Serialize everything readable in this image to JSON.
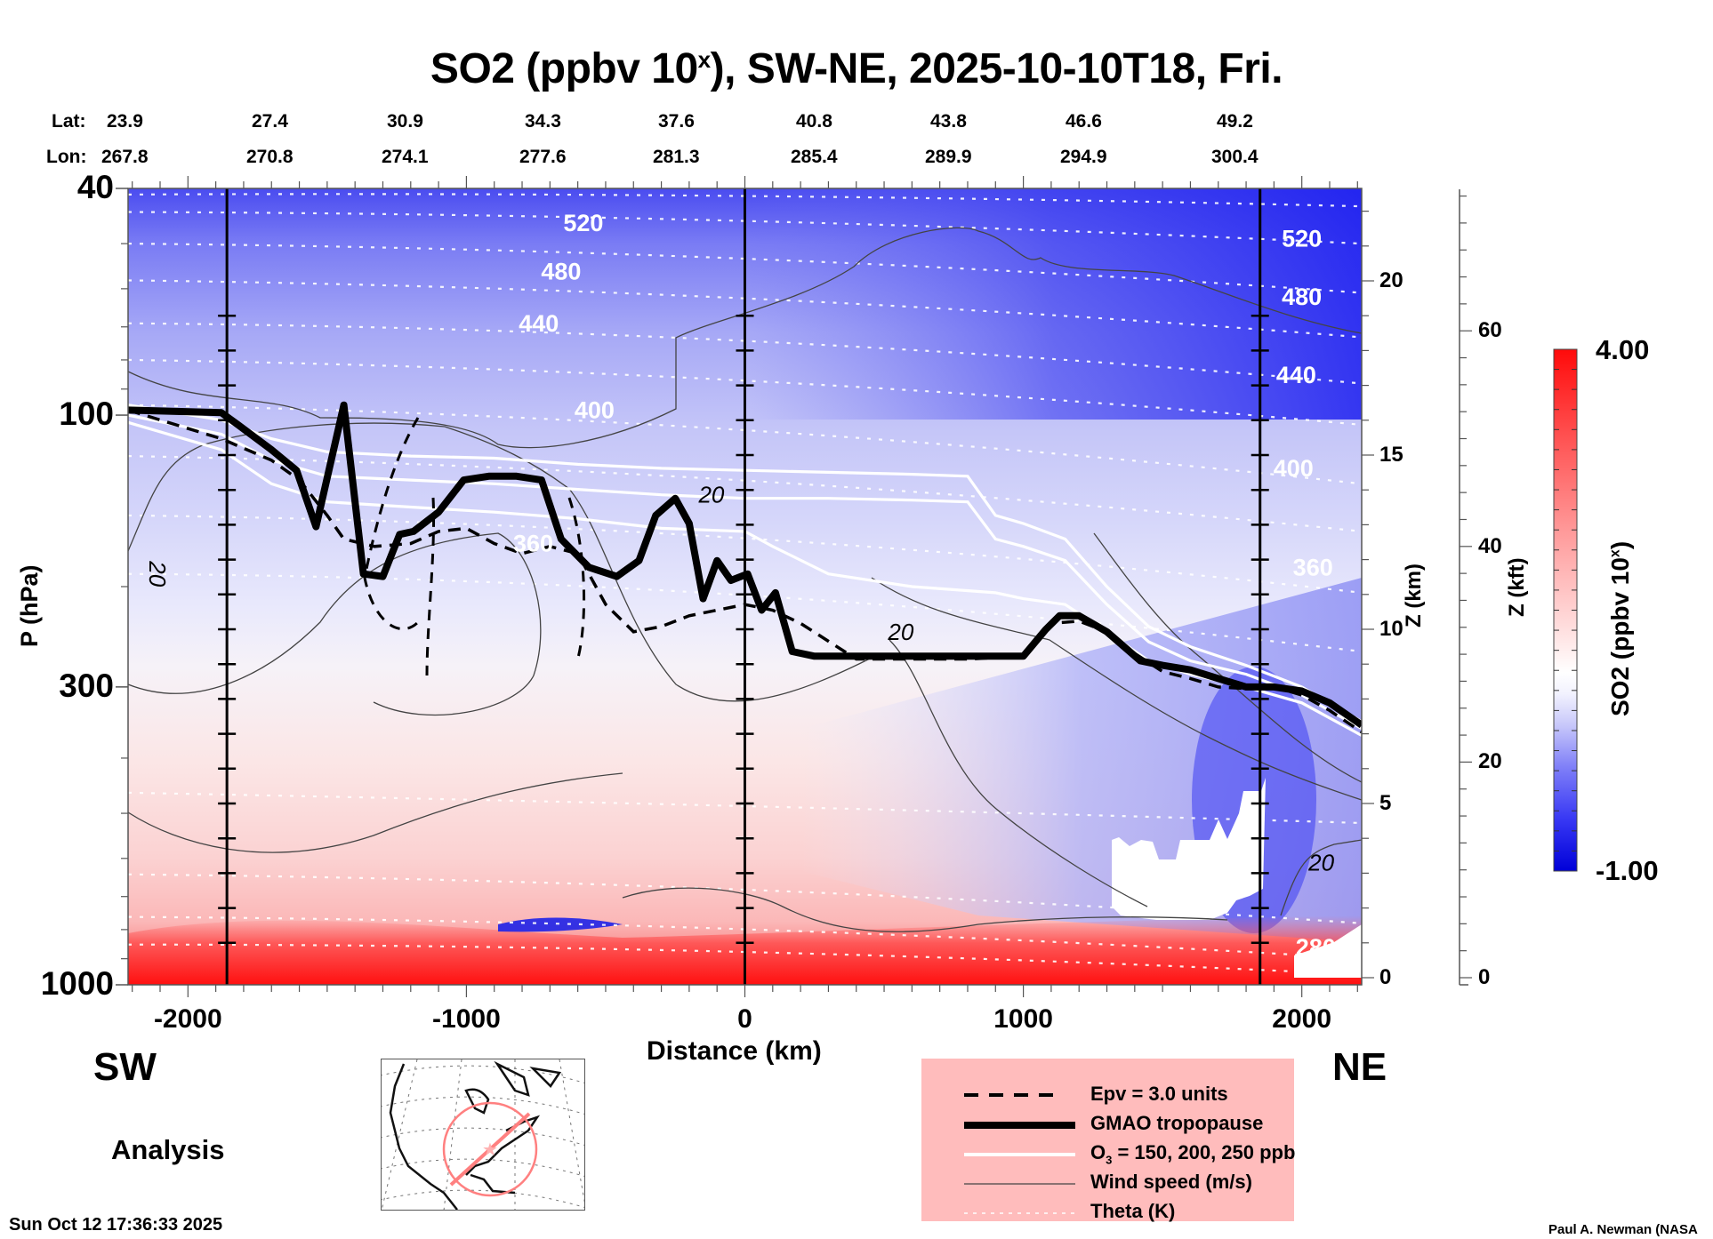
{
  "header": {
    "title_prefix": "SO2 (ppbv 10",
    "title_sup": "x",
    "title_suffix": "), SW-NE, 2025-10-10T18, Fri.",
    "lat_label": "Lat:",
    "lon_label": "Lon:",
    "lats": [
      "23.9",
      "27.4",
      "30.9",
      "34.3",
      "37.6",
      "40.8",
      "43.8",
      "46.6",
      "49.2"
    ],
    "lons": [
      "267.8",
      "270.8",
      "274.1",
      "277.6",
      "281.3",
      "285.4",
      "289.9",
      "294.9",
      "300.4"
    ]
  },
  "footer": {
    "left_dir": "SW",
    "right_dir": "NE",
    "mode": "Analysis",
    "timestamp": "Sun Oct 12 17:36:33 2025",
    "credit": "Paul A. Newman (NASA"
  },
  "legend": {
    "items": [
      {
        "label": "Epv = 3.0 units",
        "style": "dashed-thick"
      },
      {
        "label": "GMAO tropopause",
        "style": "solid-bold"
      },
      {
        "label_main": "O",
        "label_sub": "3",
        "label_rest": " = 150, 200, 250 ppb",
        "style": "white-solid"
      },
      {
        "label": "Wind speed (m/s)",
        "style": "thin-gray"
      },
      {
        "label": "Theta (K)",
        "style": "white-dotted"
      }
    ],
    "background": "#ffbcbc"
  },
  "chart_data": {
    "type": "heatmap",
    "title": "SO2 (ppbv 10^x), SW-NE, 2025-10-10T18, Fri.",
    "xlabel": "Distance (km)",
    "ylabel": "P (hPa)",
    "y2label": "Z (km)",
    "y3label": "Z (kft)",
    "xlim": [
      -2215,
      2215
    ],
    "ylim": [
      1000,
      40
    ],
    "yscale": "log",
    "x_ticks": [
      -2000,
      -1000,
      0,
      1000,
      2000
    ],
    "x_tick_labels": [
      "-2000",
      "-1000",
      "0",
      "1000",
      "2000"
    ],
    "y_ticks": [
      40,
      100,
      300,
      1000
    ],
    "y_tick_labels": [
      "40",
      "100",
      "300",
      "1000"
    ],
    "z_km_ticks": [
      0,
      5,
      10,
      15,
      20
    ],
    "z_kft_ticks": [
      0,
      20,
      40,
      60
    ],
    "colorbar": {
      "label_prefix": "SO2 (ppbv 10",
      "label_sup": "x",
      "label_suffix": ")",
      "min": -1.0,
      "max": 4.0,
      "min_label": "-1.00",
      "max_label": "4.00",
      "low_color": "#0000e0",
      "mid_color": "#ffffff",
      "high_color": "#ff0000"
    },
    "vertical_markers_km": [
      -1860,
      0,
      1850
    ],
    "theta_labels": [
      {
        "value": "520",
        "x": -580,
        "p": 46
      },
      {
        "value": "480",
        "x": -660,
        "p": 56
      },
      {
        "value": "440",
        "x": -740,
        "p": 69
      },
      {
        "value": "400",
        "x": -540,
        "p": 98
      },
      {
        "value": "360",
        "x": -760,
        "p": 168
      },
      {
        "value": "520",
        "x": 2000,
        "p": 49
      },
      {
        "value": "480",
        "x": 2000,
        "p": 62
      },
      {
        "value": "440",
        "x": 1980,
        "p": 85
      },
      {
        "value": "400",
        "x": 1970,
        "p": 124
      },
      {
        "value": "360",
        "x": 2040,
        "p": 185
      },
      {
        "value": "280",
        "x": 2050,
        "p": 860
      }
    ],
    "wind_labels": [
      {
        "value": "20",
        "x": -2110,
        "p": 190
      },
      {
        "value": "20",
        "x": -120,
        "p": 138
      },
      {
        "value": "20",
        "x": 560,
        "p": 240
      },
      {
        "value": "20",
        "x": 2070,
        "p": 610
      }
    ],
    "tropopause": {
      "x": [
        -2215,
        -1880,
        -1820,
        -1700,
        -1610,
        -1540,
        -1440,
        -1370,
        -1300,
        -1240,
        -1190,
        -1100,
        -1010,
        -920,
        -820,
        -730,
        -660,
        -560,
        -460,
        -380,
        -320,
        -250,
        -200,
        -150,
        -100,
        -50,
        10,
        60,
        110,
        170,
        250,
        500,
        800,
        1000,
        1080,
        1130,
        1200,
        1300,
        1420,
        1500,
        1600,
        1700,
        1800,
        1900,
        2000,
        2100,
        2215
      ],
      "p": [
        98,
        99,
        104,
        115,
        125,
        157,
        96,
        190,
        192,
        162,
        160,
        148,
        130,
        128,
        128,
        130,
        165,
        185,
        192,
        180,
        150,
        140,
        155,
        210,
        180,
        195,
        190,
        220,
        205,
        260,
        265,
        265,
        265,
        265,
        238,
        225,
        225,
        240,
        270,
        275,
        280,
        290,
        300,
        300,
        305,
        320,
        350
      ]
    },
    "epv_3": {
      "x": [
        -2215,
        -1880,
        -1700,
        -1600,
        -1500,
        -1440,
        -1330,
        -1200,
        -1100,
        -1000,
        -900,
        -800,
        -700,
        -600,
        -500,
        -400,
        -300,
        -200,
        -100,
        0,
        100,
        200,
        400,
        600,
        800,
        1000,
        1100,
        1200,
        1300,
        1400,
        1500,
        1600,
        1700,
        1800,
        1900,
        2000,
        2100,
        2215
      ],
      "p": [
        98,
        110,
        120,
        130,
        150,
        165,
        170,
        168,
        160,
        158,
        168,
        175,
        170,
        175,
        215,
        240,
        235,
        225,
        220,
        215,
        220,
        232,
        268,
        268,
        268,
        265,
        232,
        230,
        240,
        262,
        282,
        290,
        300,
        302,
        300,
        310,
        330,
        360
      ]
    },
    "o3_contours": [
      {
        "x": [
          -2215,
          -1880,
          -1700,
          -1500,
          -1200,
          -900,
          -600,
          -300,
          0,
          300,
          600,
          800,
          900,
          1000,
          1150,
          1300,
          1450,
          1600,
          1800,
          2000,
          2215
        ],
        "p": [
          96,
          102,
          110,
          116,
          118,
          119,
          122,
          124,
          125,
          126,
          127,
          128,
          150,
          155,
          165,
          200,
          235,
          255,
          275,
          300,
          345
        ]
      },
      {
        "x": [
          -2215,
          -1880,
          -1700,
          -1500,
          -1200,
          -900,
          -600,
          -300,
          0,
          300,
          600,
          800,
          900,
          1000,
          1150,
          1300,
          1450,
          1600,
          1800,
          2000,
          2215
        ],
        "p": [
          100,
          108,
          120,
          128,
          130,
          132,
          135,
          138,
          140,
          140,
          141,
          142,
          165,
          170,
          180,
          215,
          250,
          270,
          285,
          310,
          355
        ]
      },
      {
        "x": [
          -2215,
          -1880,
          -1700,
          -1500,
          -1200,
          -900,
          -600,
          -300,
          0,
          100,
          300,
          600,
          900,
          1000,
          1150,
          1300,
          1450,
          1600,
          1800,
          2000,
          2215
        ],
        "p": [
          103,
          115,
          132,
          142,
          145,
          148,
          152,
          158,
          160,
          170,
          190,
          200,
          205,
          210,
          215,
          240,
          270,
          285,
          300,
          320,
          365
        ]
      }
    ],
    "theta_levels_K": [
      280,
      300,
      320,
      340,
      360,
      380,
      400,
      420,
      440,
      460,
      480,
      500,
      520,
      540
    ]
  }
}
